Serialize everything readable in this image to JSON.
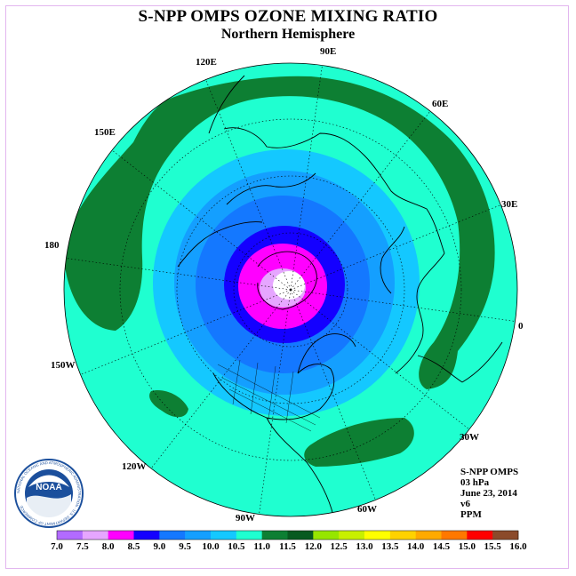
{
  "header": {
    "title": "S-NPP OMPS OZONE MIXING RATIO",
    "subtitle": "Northern Hemisphere"
  },
  "map": {
    "projection": "north polar stereographic",
    "longitude_labels": [
      {
        "text": "90E"
      },
      {
        "text": "60E"
      },
      {
        "text": "30E"
      },
      {
        "text": "0"
      },
      {
        "text": "30W"
      },
      {
        "text": "60W"
      },
      {
        "text": "90W"
      },
      {
        "text": "120W"
      },
      {
        "text": "150W"
      },
      {
        "text": "180"
      },
      {
        "text": "150E"
      },
      {
        "text": "120E"
      }
    ],
    "fill_colors": {
      "ocean_teal": "#1fffd0",
      "dark_green": "#0d7f33",
      "light_blue": "#14c8ff",
      "mid_blue": "#149fff",
      "blue": "#1478ff",
      "deep_blue": "#1400ff",
      "magenta": "#ff00ff",
      "light_violet": "#e6a6ff",
      "white": "#ffffff"
    }
  },
  "info": {
    "instrument": "S-NPP OMPS",
    "level": "03 hPa",
    "date": "June 23, 2014",
    "version": "v6",
    "units": "PPM"
  },
  "colorbar": {
    "labels": [
      "7.0",
      "7.5",
      "8.0",
      "8.5",
      "9.0",
      "9.5",
      "10.0",
      "10.5",
      "11.0",
      "11.5",
      "12.0",
      "12.5",
      "13.0",
      "13.5",
      "14.0",
      "14.5",
      "15.0",
      "15.5",
      "16.0"
    ],
    "colors": [
      "#b26bff",
      "#e6a6ff",
      "#ff00ff",
      "#1400ff",
      "#1478ff",
      "#149fff",
      "#14c8ff",
      "#1fffd0",
      "#0d7f33",
      "#075a20",
      "#96e600",
      "#c8f000",
      "#ffff00",
      "#ffd200",
      "#ffaa00",
      "#ff7800",
      "#ff0000",
      "#8b4a2a"
    ]
  },
  "logo": {
    "text": "NOAA",
    "ring_text": "NATIONAL OCEANIC AND ATMOSPHERIC ADMINISTRATION · U.S. DEPARTMENT OF COMMERCE"
  }
}
